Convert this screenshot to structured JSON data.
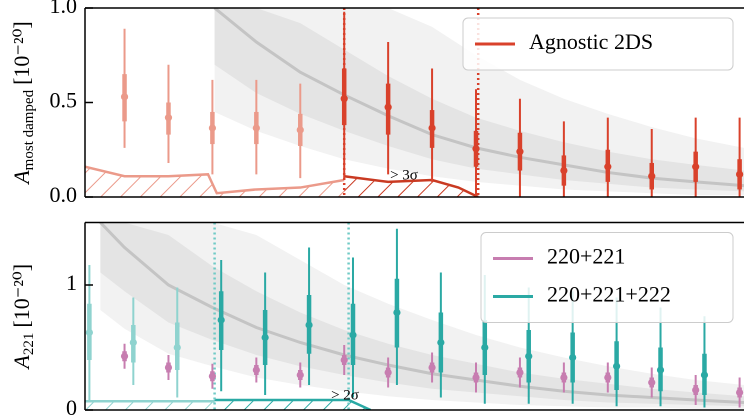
{
  "chart_data": [
    {
      "type": "errorbar",
      "ylabel": "A",
      "ylabel_subscript": "most damped",
      "ylabel_unit": "[10⁻²⁰]",
      "xlim": [
        0.1,
        15.1
      ],
      "ylim": [
        0,
        1.0
      ],
      "yticks": [
        {
          "value": 0,
          "label": "0.0"
        },
        0.5,
        {
          "value": 1.0,
          "label": "1.0"
        }
      ],
      "legend": "upper right",
      "series": [
        {
          "name": "Agnostic 2DS",
          "color": "#d9412b",
          "point_colors": [
            "#eb9a8a",
            "#eb9a8a",
            "#eb9a8a",
            "#eb9a8a",
            "#eb9a8a",
            "#d9412b",
            "#d9412b",
            "#d9412b",
            "#d9412b",
            "#d9412b",
            "#d9412b",
            "#d9412b",
            "#d9412b",
            "#d9412b",
            "#d9412b"
          ],
          "x": [
            1,
            2,
            3,
            4,
            5,
            6,
            7,
            8,
            9,
            10,
            11,
            12,
            13,
            14,
            15
          ],
          "values": [
            0.53,
            0.42,
            0.365,
            0.365,
            0.355,
            0.52,
            0.475,
            0.365,
            0.255,
            0.24,
            0.14,
            0.16,
            0.11,
            0.16,
            0.12
          ],
          "lower": [
            0.26,
            0.18,
            0.12,
            0.12,
            0.1,
            0.1,
            0.12,
            0.08,
            0.0,
            0.0,
            0.0,
            0.0,
            0.0,
            0.0,
            0.0
          ],
          "upper": [
            0.89,
            0.7,
            0.62,
            0.62,
            0.6,
            0.98,
            0.82,
            0.68,
            0.57,
            0.52,
            0.4,
            0.42,
            0.36,
            0.42,
            0.42
          ],
          "inner_lower": [
            0.4,
            0.33,
            0.28,
            0.28,
            0.27,
            0.38,
            0.33,
            0.26,
            0.16,
            0.14,
            0.06,
            0.08,
            0.04,
            0.08,
            0.04
          ],
          "inner_upper": [
            0.65,
            0.5,
            0.45,
            0.45,
            0.44,
            0.68,
            0.6,
            0.46,
            0.35,
            0.34,
            0.22,
            0.25,
            0.18,
            0.24,
            0.2
          ]
        }
      ],
      "reference": {
        "x": [
          3.05,
          4,
          5,
          6,
          7,
          8,
          9,
          10,
          11,
          12,
          13,
          14,
          15.1
        ],
        "values": [
          1.0,
          0.82,
          0.66,
          0.54,
          0.43,
          0.33,
          0.26,
          0.21,
          0.17,
          0.13,
          0.1,
          0.08,
          0.06
        ],
        "band_lower": [
          0.7,
          0.55,
          0.44,
          0.35,
          0.27,
          0.2,
          0.15,
          0.12,
          0.09,
          0.07,
          0.05,
          0.04,
          0.03
        ],
        "band_upper": [
          1.0,
          1.0,
          0.92,
          0.78,
          0.64,
          0.52,
          0.42,
          0.35,
          0.29,
          0.24,
          0.2,
          0.17,
          0.14
        ],
        "outer_lower": [
          0.45,
          0.35,
          0.27,
          0.2,
          0.15,
          0.11,
          0.08,
          0.06,
          0.04,
          0.03,
          0.02,
          0.01,
          0.01
        ],
        "outer_upper": [
          1,
          1,
          1,
          1,
          1,
          0.9,
          0.75,
          0.62,
          0.52,
          0.44,
          0.37,
          0.31,
          0.26
        ]
      },
      "hatch": [
        {
          "color": "#eb9a8a",
          "x": [
            0.1,
            1,
            2,
            2.9,
            3.1,
            4,
            5,
            6.0
          ],
          "values": [
            0.16,
            0.11,
            0.11,
            0.12,
            0.02,
            0.04,
            0.05,
            0.09
          ]
        },
        {
          "color": "#c93a22",
          "x": [
            6.0,
            7,
            8,
            8.6,
            9.05
          ],
          "values": [
            0.11,
            0.08,
            0.09,
            0.05,
            0
          ]
        }
      ],
      "vlines": {
        "color": "#d9412b",
        "x": [
          6.0,
          9.05
        ]
      },
      "annotation": "> 3σ"
    },
    {
      "type": "errorbar",
      "ylabel": "A",
      "ylabel_subscript": "221",
      "ylabel_unit": "[10⁻²⁰]",
      "xlim": [
        0.1,
        15.1
      ],
      "ylim": [
        0,
        1.5
      ],
      "yticks": [
        0,
        1
      ],
      "legend": "upper right",
      "series": [
        {
          "name": "220+221",
          "color": "#c77db0",
          "point_colors": [
            "#c77db0",
            "#c77db0",
            "#c77db0",
            "#c77db0",
            "#c77db0",
            "#c77db0",
            "#c77db0",
            "#c77db0",
            "#c77db0",
            "#c77db0",
            "#c77db0",
            "#c77db0",
            "#c77db0",
            "#c77db0",
            "#c77db0"
          ],
          "x": [
            1,
            2,
            3,
            4,
            5,
            6,
            7,
            8,
            9,
            10,
            11,
            12,
            13,
            14,
            15
          ],
          "values": [
            0.43,
            0.34,
            0.27,
            0.32,
            0.28,
            0.4,
            0.3,
            0.34,
            0.26,
            0.3,
            0.26,
            0.26,
            0.22,
            0.16,
            0.14
          ],
          "lower": [
            0.33,
            0.24,
            0.17,
            0.22,
            0.18,
            0.28,
            0.18,
            0.22,
            0.14,
            0.18,
            0.14,
            0.14,
            0.1,
            0.04,
            0.02
          ],
          "upper": [
            0.53,
            0.44,
            0.37,
            0.42,
            0.38,
            0.52,
            0.42,
            0.46,
            0.38,
            0.42,
            0.38,
            0.38,
            0.34,
            0.28,
            0.26
          ],
          "inner_lower": [
            0.39,
            0.3,
            0.23,
            0.28,
            0.24,
            0.36,
            0.26,
            0.3,
            0.22,
            0.26,
            0.22,
            0.22,
            0.18,
            0.12,
            0.1
          ],
          "inner_upper": [
            0.47,
            0.38,
            0.31,
            0.36,
            0.32,
            0.44,
            0.34,
            0.38,
            0.3,
            0.34,
            0.3,
            0.3,
            0.26,
            0.2,
            0.18
          ]
        },
        {
          "name": "220+221+222",
          "color": "#2aa9a4",
          "point_colors": [
            "#8fd3cf",
            "#8fd3cf",
            "#8fd3cf",
            "#2aa9a4",
            "#2aa9a4",
            "#2aa9a4",
            "#2aa9a4",
            "#2aa9a4",
            "#2aa9a4",
            "#2aa9a4",
            "#2aa9a4",
            "#2aa9a4",
            "#2aa9a4",
            "#2aa9a4",
            "#2aa9a4"
          ],
          "x": [
            0.2,
            1.2,
            2.2,
            3.2,
            4.2,
            5.2,
            6.2,
            7.2,
            8.2,
            9.2,
            10.2,
            11.2,
            12.2,
            13.2,
            14.2
          ],
          "values": [
            0.62,
            0.54,
            0.5,
            0.72,
            0.58,
            0.68,
            0.6,
            0.78,
            0.54,
            0.5,
            0.43,
            0.42,
            0.35,
            0.32,
            0.28
          ],
          "lower": [
            0.08,
            0.2,
            0.1,
            0.15,
            0.12,
            0.2,
            0.1,
            0.2,
            0.1,
            0.05,
            0.05,
            0.05,
            0.03,
            0.03,
            0.02
          ],
          "upper": [
            1.16,
            0.9,
            0.98,
            1.2,
            1.1,
            1.3,
            1.22,
            1.45,
            1.1,
            1.08,
            0.98,
            0.95,
            0.9,
            0.82,
            0.75
          ],
          "inner_lower": [
            0.4,
            0.38,
            0.32,
            0.48,
            0.36,
            0.45,
            0.36,
            0.5,
            0.3,
            0.28,
            0.22,
            0.22,
            0.16,
            0.15,
            0.12
          ],
          "inner_upper": [
            0.85,
            0.68,
            0.7,
            0.95,
            0.8,
            0.92,
            0.85,
            1.05,
            0.78,
            0.72,
            0.64,
            0.62,
            0.55,
            0.5,
            0.45
          ]
        }
      ],
      "reference": {
        "x": [
          0.45,
          1,
          2,
          3,
          4,
          5,
          6,
          7,
          8,
          9,
          10,
          11,
          12,
          13,
          14,
          15.1
        ],
        "values": [
          1.5,
          1.3,
          1.0,
          0.82,
          0.66,
          0.54,
          0.44,
          0.36,
          0.29,
          0.24,
          0.19,
          0.15,
          0.12,
          0.1,
          0.08,
          0.06
        ],
        "band_lower": [
          1.1,
          0.95,
          0.7,
          0.56,
          0.44,
          0.35,
          0.28,
          0.22,
          0.17,
          0.14,
          0.11,
          0.08,
          0.06,
          0.05,
          0.04,
          0.03
        ],
        "band_upper": [
          1.5,
          1.5,
          1.4,
          1.15,
          0.95,
          0.78,
          0.64,
          0.53,
          0.44,
          0.37,
          0.3,
          0.25,
          0.21,
          0.17,
          0.14,
          0.11
        ],
        "outer_lower": [
          0.8,
          0.65,
          0.45,
          0.35,
          0.26,
          0.2,
          0.15,
          0.11,
          0.08,
          0.06,
          0.04,
          0.03,
          0.02,
          0.02,
          0.01,
          0.01
        ],
        "outer_upper": [
          1.5,
          1.5,
          1.5,
          1.5,
          1.4,
          1.2,
          1.0,
          0.85,
          0.72,
          0.6,
          0.5,
          0.42,
          0.35,
          0.29,
          0.24,
          0.2
        ]
      },
      "hatch": [
        {
          "color": "#8fd3cf",
          "x": [
            0.1,
            3.05
          ],
          "values": [
            0.07,
            0.07
          ]
        },
        {
          "color": "#2aa9a4",
          "x": [
            3.05,
            6.1,
            6.6
          ],
          "values": [
            0.08,
            0.08,
            0
          ]
        }
      ],
      "vlines": {
        "color": "#6fcac5",
        "x": [
          3.05,
          6.1
        ]
      },
      "annotation": "> 2σ"
    }
  ]
}
